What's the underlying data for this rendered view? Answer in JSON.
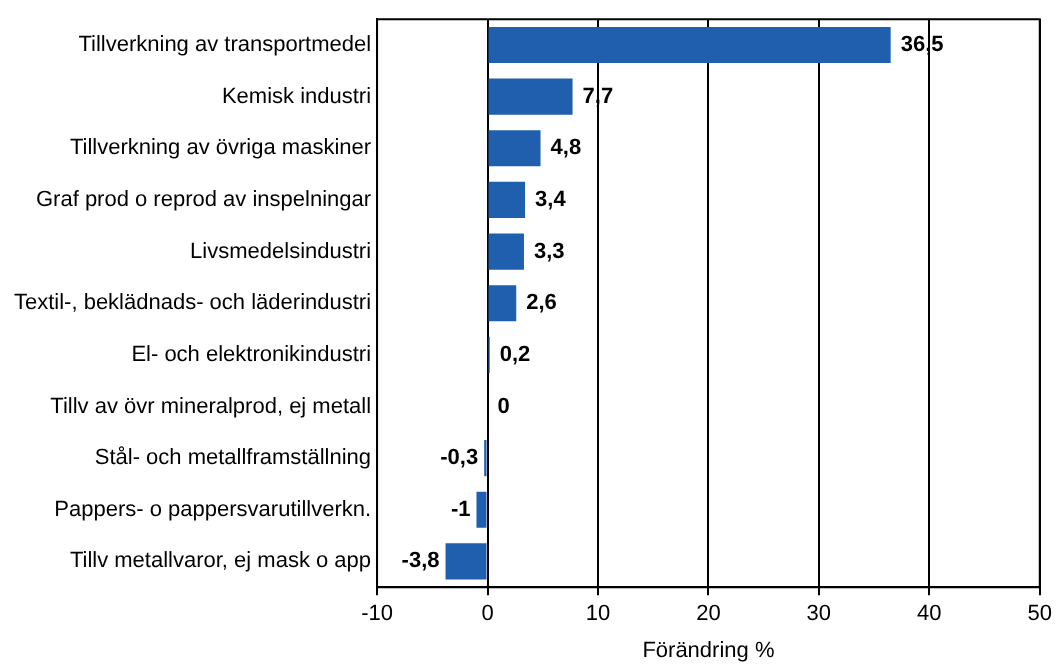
{
  "chart_data": {
    "type": "bar",
    "orientation": "horizontal",
    "xlabel": "Förändring %",
    "categories": [
      "Tillverkning av transportmedel",
      "Kemisk industri",
      "Tillverkning av övriga maskiner",
      "Graf prod o reprod av inspelningar",
      "Livsmedelsindustri",
      "Textil-, beklädnads- och läderindustri",
      "El- och elektronikindustri",
      "Tillv av övr mineralprod, ej metall",
      "Stål- och metallframställning",
      "Pappers- o pappersvarutillverkn.",
      "Tillv metallvaror, ej mask o app"
    ],
    "values": [
      36.5,
      7.7,
      4.8,
      3.4,
      3.3,
      2.6,
      0.2,
      0,
      -0.3,
      -1,
      -3.8
    ],
    "value_labels": [
      "36,5",
      "7,7",
      "4,8",
      "3,4",
      "3,3",
      "2,6",
      "0,2",
      "0",
      "-0,3",
      "-1",
      "-3,8"
    ],
    "color": "#1f5fae",
    "xlim": [
      -10,
      50
    ],
    "xticks": [
      -10,
      0,
      10,
      20,
      30,
      40,
      50
    ],
    "grid": "x",
    "legend": false
  }
}
